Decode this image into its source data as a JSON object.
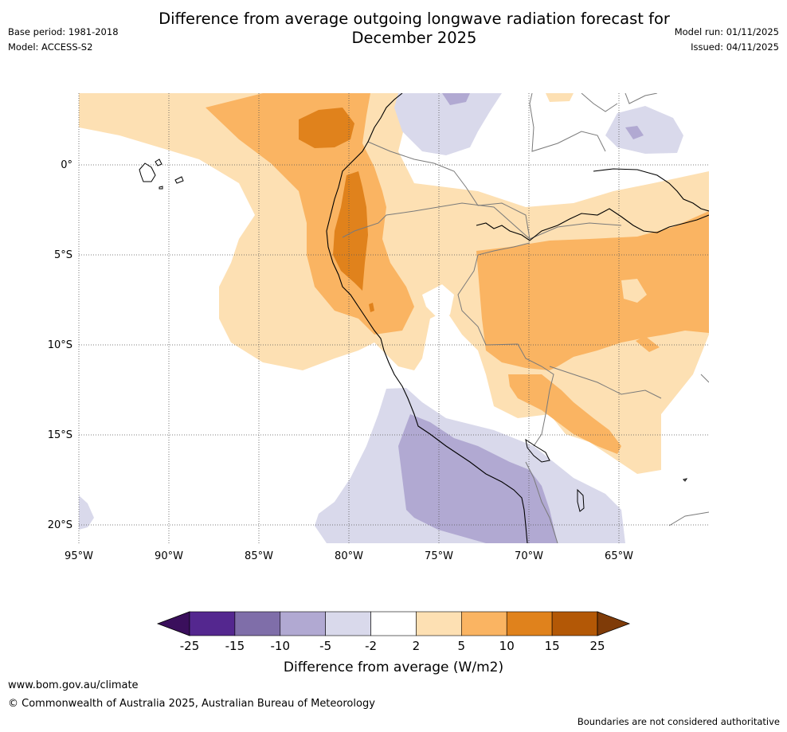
{
  "title": "Difference from average outgoing longwave radiation forecast for December 2025",
  "title_line1": "Difference from average outgoing longwave radiation forecast for",
  "title_line2": "December 2025",
  "base_period": "Base period: 1981-2018",
  "model": "Model: ACCESS-S2",
  "model_run": "Model run: 01/11/2025",
  "issued": "Issued: 04/11/2025",
  "lon_labels": [
    "95°W",
    "90°W",
    "85°W",
    "80°W",
    "75°W",
    "70°W",
    "65°W"
  ],
  "lat_labels": [
    "0°",
    "5°S",
    "10°S",
    "15°S",
    "20°S"
  ],
  "colorbar": {
    "ticks": [
      "-25",
      "-15",
      "-10",
      "-5",
      "-2",
      "2",
      "5",
      "10",
      "15",
      "25"
    ],
    "colors": [
      "#3a0f5c",
      "#54278f",
      "#7f6ea9",
      "#b1a9d2",
      "#d9d9eb",
      "#ffffff",
      "#fde0b3",
      "#fab462",
      "#e0821c",
      "#b35806",
      "#7f3b08"
    ],
    "label": "Difference from average (W/m2)"
  },
  "website": "www.bom.gov.au/climate",
  "copyright": "© Commonwealth of Australia 2025, Australian Bureau of Meteorology",
  "disclaimer": "Boundaries are not considered authoritative"
}
